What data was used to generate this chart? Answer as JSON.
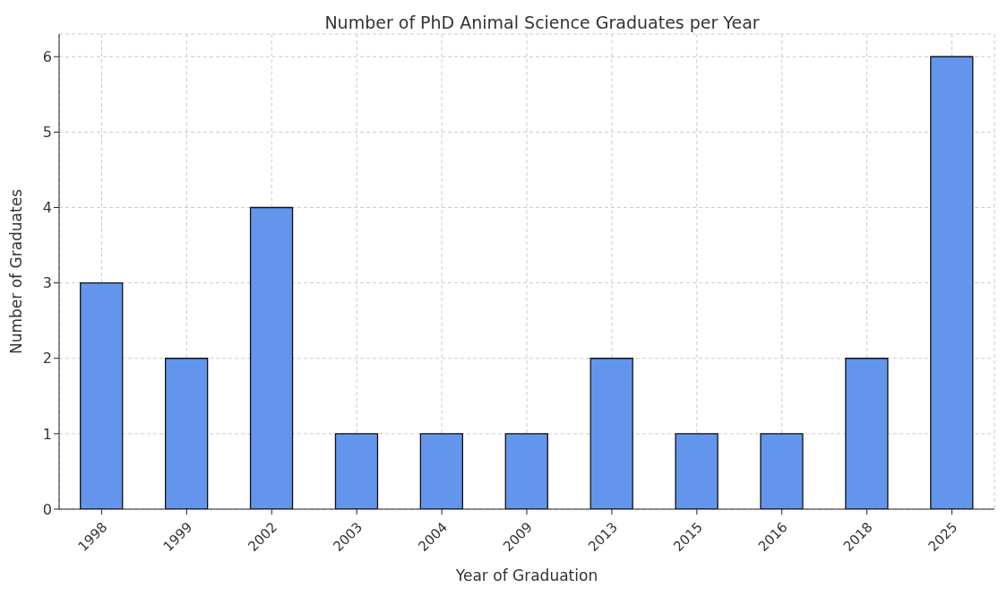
{
  "chart_data": {
    "type": "bar",
    "title": "Number of PhD Animal Science Graduates per Year",
    "xlabel": "Year of Graduation",
    "ylabel": "Number of Graduates",
    "categories": [
      "1998",
      "1999",
      "2002",
      "2003",
      "2004",
      "2009",
      "2013",
      "2015",
      "2016",
      "2018",
      "2025"
    ],
    "values": [
      3,
      2,
      4,
      1,
      1,
      1,
      2,
      1,
      1,
      2,
      6
    ],
    "color": "#6495ed",
    "ylim": [
      0,
      6.3
    ],
    "yticks": [
      0,
      1,
      2,
      3,
      4,
      5,
      6
    ],
    "grid": true
  }
}
